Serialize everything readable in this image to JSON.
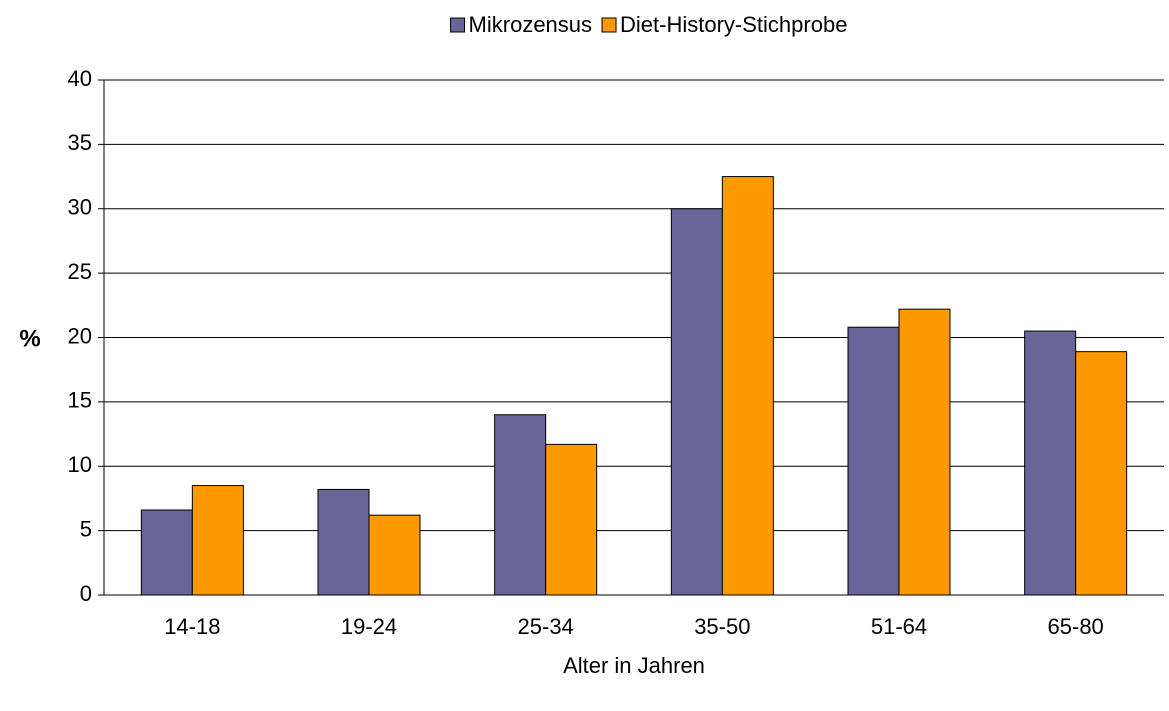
{
  "chart_data": {
    "type": "bar",
    "xlabel": "Alter  in Jahren",
    "ylabel": "%",
    "categories": [
      "14-18",
      "19-24",
      "25-34",
      "35-50",
      "51-64",
      "65-80"
    ],
    "series": [
      {
        "name": "Mikrozensus",
        "color": "#666699",
        "values": [
          6.6,
          8.2,
          14.0,
          30.0,
          20.8,
          20.5
        ]
      },
      {
        "name": "Diet-History-Stichprobe",
        "color": "#ff9900",
        "values": [
          8.5,
          6.2,
          11.7,
          32.5,
          22.2,
          18.9
        ]
      }
    ],
    "ylim": [
      0,
      40
    ],
    "yticks": [
      0,
      5,
      10,
      15,
      20,
      25,
      30,
      35,
      40
    ],
    "grid": true,
    "legend": "top"
  }
}
